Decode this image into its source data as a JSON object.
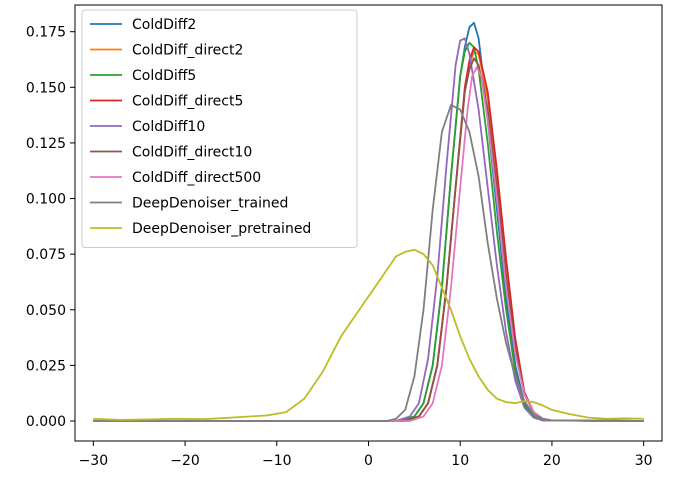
{
  "chart_data": {
    "type": "line",
    "title": "",
    "xlabel": "",
    "ylabel": "",
    "xlim": [
      -32,
      32
    ],
    "ylim": [
      -0.009,
      0.187
    ],
    "xticks": [
      -30,
      -20,
      -10,
      0,
      10,
      20,
      30
    ],
    "yticks": [
      0.0,
      0.025,
      0.05,
      0.075,
      0.1,
      0.125,
      0.15,
      0.175
    ],
    "xtick_labels": [
      "−30",
      "−20",
      "−10",
      "0",
      "10",
      "20",
      "30"
    ],
    "ytick_labels": [
      "0.000",
      "0.025",
      "0.050",
      "0.075",
      "0.100",
      "0.125",
      "0.150",
      "0.175"
    ],
    "grid": false,
    "legend_position": "upper-left",
    "series": [
      {
        "name": "ColdDiff2",
        "color": "#1f77b4",
        "points": [
          [
            -30,
            0
          ],
          [
            3,
            0
          ],
          [
            5,
            0.002
          ],
          [
            6,
            0.008
          ],
          [
            7,
            0.025
          ],
          [
            8,
            0.06
          ],
          [
            9,
            0.11
          ],
          [
            10,
            0.155
          ],
          [
            10.5,
            0.168
          ],
          [
            11,
            0.177
          ],
          [
            11.5,
            0.179
          ],
          [
            12,
            0.172
          ],
          [
            12.5,
            0.155
          ],
          [
            13,
            0.135
          ],
          [
            14,
            0.095
          ],
          [
            15,
            0.055
          ],
          [
            16,
            0.025
          ],
          [
            17,
            0.008
          ],
          [
            18,
            0.002
          ],
          [
            19,
            0.0003
          ],
          [
            30,
            0
          ]
        ]
      },
      {
        "name": "ColdDiff_direct2",
        "color": "#ff7f0e",
        "points": [
          [
            -30,
            0
          ],
          [
            4,
            0
          ],
          [
            5.5,
            0.002
          ],
          [
            6.5,
            0.008
          ],
          [
            7.5,
            0.025
          ],
          [
            8.5,
            0.06
          ],
          [
            9.5,
            0.105
          ],
          [
            10.5,
            0.148
          ],
          [
            11,
            0.16
          ],
          [
            11.5,
            0.166
          ],
          [
            12,
            0.165
          ],
          [
            13,
            0.145
          ],
          [
            14,
            0.11
          ],
          [
            15,
            0.07
          ],
          [
            16,
            0.035
          ],
          [
            17,
            0.012
          ],
          [
            18,
            0.004
          ],
          [
            19,
            0.001
          ],
          [
            20,
            0.0002
          ],
          [
            30,
            0
          ]
        ]
      },
      {
        "name": "ColdDiff5",
        "color": "#2ca02c",
        "points": [
          [
            -30,
            0
          ],
          [
            3.5,
            0
          ],
          [
            5,
            0.002
          ],
          [
            6,
            0.008
          ],
          [
            7,
            0.025
          ],
          [
            8,
            0.06
          ],
          [
            9,
            0.11
          ],
          [
            10,
            0.155
          ],
          [
            10.5,
            0.166
          ],
          [
            11,
            0.17
          ],
          [
            11.5,
            0.168
          ],
          [
            12,
            0.158
          ],
          [
            13,
            0.125
          ],
          [
            14,
            0.085
          ],
          [
            15,
            0.05
          ],
          [
            16,
            0.022
          ],
          [
            17,
            0.007
          ],
          [
            18,
            0.002
          ],
          [
            19,
            0.0003
          ],
          [
            30,
            0
          ]
        ]
      },
      {
        "name": "ColdDiff_direct5",
        "color": "#d62728",
        "points": [
          [
            -30,
            0
          ],
          [
            4,
            0
          ],
          [
            5.5,
            0.002
          ],
          [
            6.5,
            0.008
          ],
          [
            7.5,
            0.025
          ],
          [
            8.5,
            0.06
          ],
          [
            9.5,
            0.105
          ],
          [
            10.5,
            0.15
          ],
          [
            11,
            0.162
          ],
          [
            11.5,
            0.168
          ],
          [
            12,
            0.166
          ],
          [
            13,
            0.148
          ],
          [
            14,
            0.113
          ],
          [
            15,
            0.073
          ],
          [
            16,
            0.037
          ],
          [
            17,
            0.013
          ],
          [
            18,
            0.004
          ],
          [
            19,
            0.001
          ],
          [
            20,
            0.0002
          ],
          [
            30,
            0
          ]
        ]
      },
      {
        "name": "ColdDiff10",
        "color": "#9467bd",
        "points": [
          [
            -30,
            0
          ],
          [
            3,
            0
          ],
          [
            4.5,
            0.002
          ],
          [
            5.5,
            0.008
          ],
          [
            6.5,
            0.028
          ],
          [
            7.5,
            0.065
          ],
          [
            8.5,
            0.115
          ],
          [
            9.5,
            0.16
          ],
          [
            10,
            0.171
          ],
          [
            10.5,
            0.172
          ],
          [
            11,
            0.165
          ],
          [
            12,
            0.14
          ],
          [
            13,
            0.105
          ],
          [
            14,
            0.07
          ],
          [
            15,
            0.04
          ],
          [
            16,
            0.018
          ],
          [
            17,
            0.006
          ],
          [
            18,
            0.0015
          ],
          [
            19,
            0.0002
          ],
          [
            30,
            0
          ]
        ]
      },
      {
        "name": "ColdDiff_direct10",
        "color": "#8c564b",
        "points": [
          [
            -30,
            0
          ],
          [
            4,
            0
          ],
          [
            5.5,
            0.002
          ],
          [
            6.5,
            0.008
          ],
          [
            7.5,
            0.025
          ],
          [
            8.5,
            0.06
          ],
          [
            9.5,
            0.105
          ],
          [
            10.5,
            0.148
          ],
          [
            11,
            0.158
          ],
          [
            11.5,
            0.163
          ],
          [
            12,
            0.16
          ],
          [
            13,
            0.14
          ],
          [
            14,
            0.105
          ],
          [
            15,
            0.065
          ],
          [
            16,
            0.032
          ],
          [
            17,
            0.012
          ],
          [
            18,
            0.004
          ],
          [
            19,
            0.001
          ],
          [
            20,
            0.0002
          ],
          [
            30,
            0
          ]
        ]
      },
      {
        "name": "ColdDiff_direct500",
        "color": "#e377c2",
        "points": [
          [
            -30,
            0
          ],
          [
            4.5,
            0
          ],
          [
            6,
            0.002
          ],
          [
            7,
            0.008
          ],
          [
            8,
            0.025
          ],
          [
            9,
            0.06
          ],
          [
            10,
            0.105
          ],
          [
            10.8,
            0.14
          ],
          [
            11.3,
            0.155
          ],
          [
            11.8,
            0.159
          ],
          [
            12.3,
            0.155
          ],
          [
            13,
            0.135
          ],
          [
            14,
            0.1
          ],
          [
            15,
            0.06
          ],
          [
            16,
            0.03
          ],
          [
            17,
            0.012
          ],
          [
            18,
            0.004
          ],
          [
            19,
            0.001
          ],
          [
            20,
            0.0002
          ],
          [
            30,
            0
          ]
        ]
      },
      {
        "name": "DeepDenoiser_trained",
        "color": "#7f7f7f",
        "points": [
          [
            -30,
            0
          ],
          [
            2,
            0
          ],
          [
            3,
            0.001
          ],
          [
            4,
            0.005
          ],
          [
            5,
            0.02
          ],
          [
            6,
            0.05
          ],
          [
            7,
            0.095
          ],
          [
            8,
            0.13
          ],
          [
            9,
            0.142
          ],
          [
            10,
            0.14
          ],
          [
            11,
            0.13
          ],
          [
            12,
            0.11
          ],
          [
            13,
            0.08
          ],
          [
            14,
            0.055
          ],
          [
            15,
            0.035
          ],
          [
            16,
            0.02
          ],
          [
            17,
            0.009
          ],
          [
            18,
            0.003
          ],
          [
            19,
            0.001
          ],
          [
            20,
            0.0002
          ],
          [
            30,
            0
          ]
        ]
      },
      {
        "name": "DeepDenoiser_pretrained",
        "color": "#bcbd22",
        "points": [
          [
            -30,
            0.001
          ],
          [
            -27,
            0.0005
          ],
          [
            -24,
            0.0007
          ],
          [
            -21,
            0.001
          ],
          [
            -18,
            0.0008
          ],
          [
            -15,
            0.0015
          ],
          [
            -13,
            0.002
          ],
          [
            -11,
            0.0025
          ],
          [
            -9,
            0.004
          ],
          [
            -7,
            0.01
          ],
          [
            -5,
            0.022
          ],
          [
            -3,
            0.038
          ],
          [
            -1,
            0.05
          ],
          [
            1,
            0.062
          ],
          [
            3,
            0.074
          ],
          [
            4,
            0.076
          ],
          [
            5,
            0.077
          ],
          [
            6,
            0.075
          ],
          [
            7,
            0.07
          ],
          [
            8,
            0.06
          ],
          [
            9,
            0.05
          ],
          [
            10,
            0.038
          ],
          [
            11,
            0.028
          ],
          [
            12,
            0.02
          ],
          [
            13,
            0.014
          ],
          [
            14,
            0.01
          ],
          [
            15,
            0.0085
          ],
          [
            16,
            0.008
          ],
          [
            17,
            0.009
          ],
          [
            18,
            0.0085
          ],
          [
            19,
            0.007
          ],
          [
            20,
            0.005
          ],
          [
            22,
            0.003
          ],
          [
            24,
            0.0015
          ],
          [
            26,
            0.001
          ],
          [
            28,
            0.0012
          ],
          [
            30,
            0.001
          ]
        ]
      }
    ]
  }
}
